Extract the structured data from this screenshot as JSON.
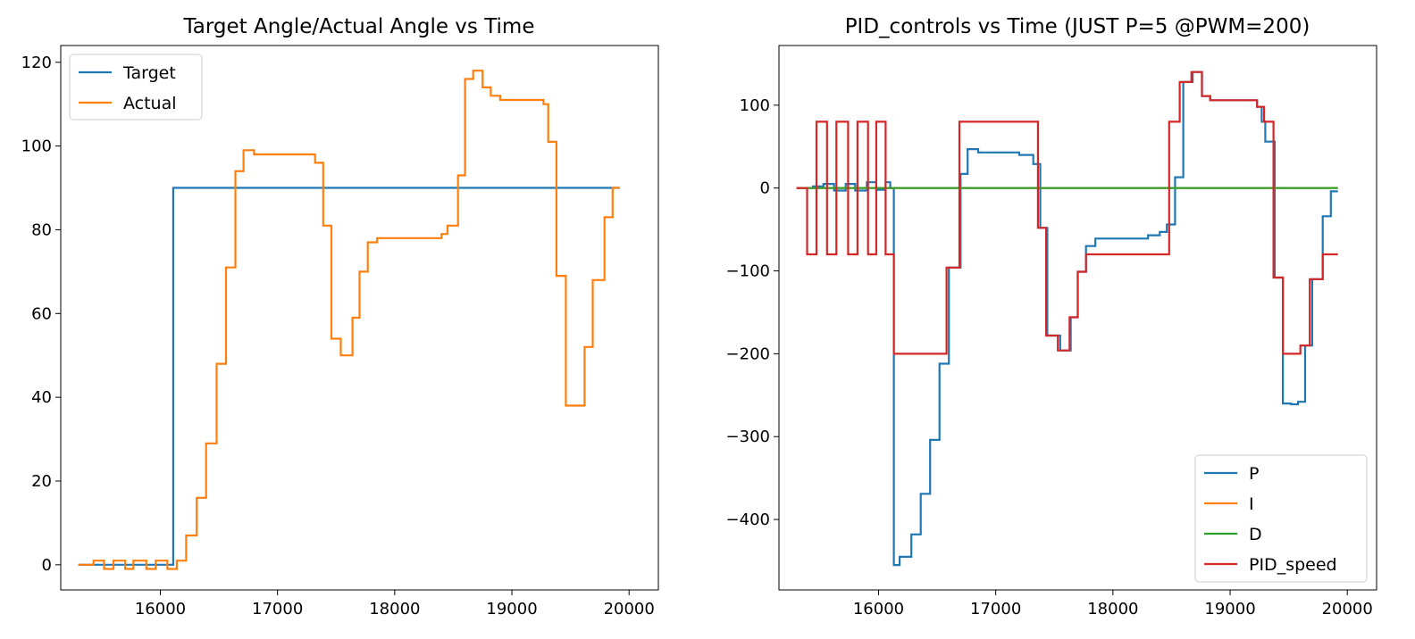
{
  "chart_data": [
    {
      "type": "line",
      "title": "Target Angle/Actual Angle vs Time",
      "xlabel": "",
      "ylabel": "",
      "xlim": [
        15150,
        20250
      ],
      "ylim": [
        -6,
        124
      ],
      "xticks": [
        16000,
        17000,
        18000,
        19000,
        20000
      ],
      "yticks": [
        0,
        20,
        40,
        60,
        80,
        100,
        120
      ],
      "grid": false,
      "legend": {
        "placement": "upper-left"
      },
      "series": [
        {
          "name": "Target",
          "color": "#1f77b4",
          "step": true,
          "points": [
            [
              15300,
              0
            ],
            [
              16100,
              0
            ],
            [
              16110,
              90
            ],
            [
              19920,
              90
            ]
          ]
        },
        {
          "name": "Actual",
          "color": "#ff7f0e",
          "step": true,
          "points": [
            [
              15300,
              0
            ],
            [
              15430,
              1
            ],
            [
              15520,
              -1
            ],
            [
              15600,
              1
            ],
            [
              15700,
              -1
            ],
            [
              15770,
              1
            ],
            [
              15880,
              -1
            ],
            [
              15960,
              1
            ],
            [
              16060,
              -1
            ],
            [
              16140,
              1
            ],
            [
              16220,
              7
            ],
            [
              16310,
              16
            ],
            [
              16390,
              29
            ],
            [
              16480,
              48
            ],
            [
              16560,
              71
            ],
            [
              16640,
              94
            ],
            [
              16710,
              99
            ],
            [
              16800,
              98
            ],
            [
              17100,
              98
            ],
            [
              17320,
              96
            ],
            [
              17390,
              81
            ],
            [
              17460,
              54
            ],
            [
              17540,
              50
            ],
            [
              17640,
              59
            ],
            [
              17700,
              70
            ],
            [
              17770,
              77
            ],
            [
              17850,
              78
            ],
            [
              18400,
              79
            ],
            [
              18450,
              81
            ],
            [
              18540,
              93
            ],
            [
              18600,
              116
            ],
            [
              18670,
              118
            ],
            [
              18750,
              114
            ],
            [
              18820,
              112
            ],
            [
              18900,
              111
            ],
            [
              19270,
              110
            ],
            [
              19310,
              101
            ],
            [
              19380,
              69
            ],
            [
              19460,
              38
            ],
            [
              19540,
              38
            ],
            [
              19620,
              52
            ],
            [
              19690,
              68
            ],
            [
              19790,
              83
            ],
            [
              19860,
              90
            ],
            [
              19920,
              90
            ]
          ]
        }
      ]
    },
    {
      "type": "line",
      "title": "PID_controls vs Time (JUST P=5 @PWM=200)",
      "xlabel": "",
      "ylabel": "",
      "xlim": [
        15150,
        20250
      ],
      "ylim": [
        -485,
        172
      ],
      "xticks": [
        16000,
        17000,
        18000,
        19000,
        20000
      ],
      "yticks": [
        -400,
        -300,
        -200,
        -100,
        0,
        100
      ],
      "grid": false,
      "legend": {
        "placement": "lower-right"
      },
      "series": [
        {
          "name": "P",
          "color": "#1f77b4",
          "step": true,
          "points": [
            [
              15300,
              0
            ],
            [
              15440,
              2
            ],
            [
              15530,
              5
            ],
            [
              15620,
              -3
            ],
            [
              15720,
              5
            ],
            [
              15800,
              -3
            ],
            [
              15900,
              7
            ],
            [
              15980,
              -2
            ],
            [
              16060,
              7
            ],
            [
              16100,
              0
            ],
            [
              16130,
              -455
            ],
            [
              16180,
              -445
            ],
            [
              16280,
              -418
            ],
            [
              16360,
              -369
            ],
            [
              16440,
              -304
            ],
            [
              16520,
              -212
            ],
            [
              16600,
              -96
            ],
            [
              16700,
              17
            ],
            [
              16760,
              47
            ],
            [
              16850,
              43
            ],
            [
              17200,
              40
            ],
            [
              17320,
              29
            ],
            [
              17380,
              -48
            ],
            [
              17440,
              -178
            ],
            [
              17550,
              -196
            ],
            [
              17640,
              -156
            ],
            [
              17700,
              -101
            ],
            [
              17770,
              -70
            ],
            [
              17850,
              -61
            ],
            [
              18300,
              -57
            ],
            [
              18400,
              -53
            ],
            [
              18460,
              -44
            ],
            [
              18530,
              13
            ],
            [
              18600,
              128
            ],
            [
              18680,
              140
            ],
            [
              18760,
              111
            ],
            [
              18830,
              106
            ],
            [
              19230,
              98
            ],
            [
              19270,
              80
            ],
            [
              19300,
              56
            ],
            [
              19380,
              -108
            ],
            [
              19450,
              -260
            ],
            [
              19520,
              -261
            ],
            [
              19580,
              -258
            ],
            [
              19640,
              -190
            ],
            [
              19700,
              -110
            ],
            [
              19790,
              -34
            ],
            [
              19860,
              -4
            ],
            [
              19920,
              -4
            ]
          ]
        },
        {
          "name": "I",
          "color": "#ff7f0e",
          "step": true,
          "points": [
            [
              15300,
              0
            ],
            [
              19920,
              0
            ]
          ]
        },
        {
          "name": "D",
          "color": "#2ca02c",
          "step": true,
          "points": [
            [
              15300,
              0
            ],
            [
              19920,
              0
            ]
          ]
        },
        {
          "name": "PID_speed",
          "color": "#d62728",
          "step": true,
          "points": [
            [
              15300,
              0
            ],
            [
              15390,
              -80
            ],
            [
              15470,
              80
            ],
            [
              15560,
              -80
            ],
            [
              15640,
              80
            ],
            [
              15740,
              -80
            ],
            [
              15820,
              80
            ],
            [
              15910,
              -80
            ],
            [
              15980,
              80
            ],
            [
              16060,
              -80
            ],
            [
              16130,
              -200
            ],
            [
              16580,
              -96
            ],
            [
              16690,
              80
            ],
            [
              17360,
              -48
            ],
            [
              17430,
              -178
            ],
            [
              17530,
              -196
            ],
            [
              17630,
              -156
            ],
            [
              17700,
              -101
            ],
            [
              17770,
              -80
            ],
            [
              18480,
              80
            ],
            [
              18570,
              128
            ],
            [
              18670,
              140
            ],
            [
              18760,
              111
            ],
            [
              18830,
              106
            ],
            [
              19230,
              98
            ],
            [
              19290,
              80
            ],
            [
              19370,
              -108
            ],
            [
              19450,
              -200
            ],
            [
              19600,
              -190
            ],
            [
              19680,
              -110
            ],
            [
              19790,
              -80
            ],
            [
              19920,
              -80
            ]
          ]
        }
      ]
    }
  ]
}
